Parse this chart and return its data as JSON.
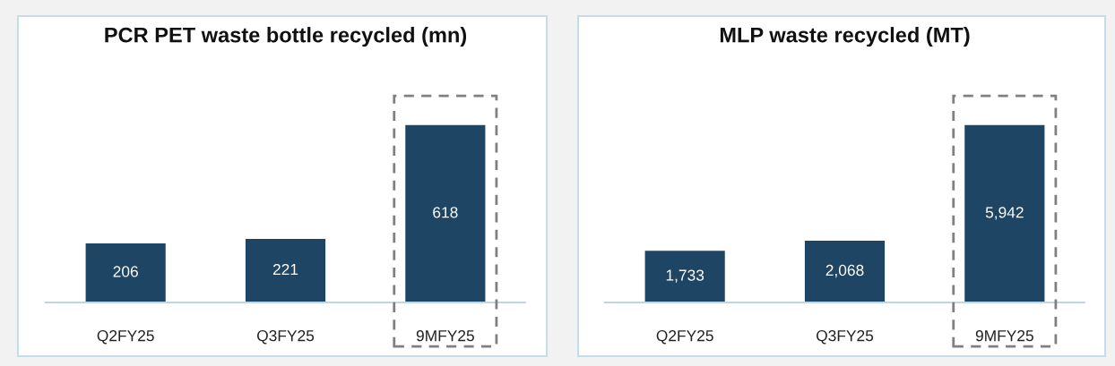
{
  "chart_data": [
    {
      "type": "bar",
      "title": "PCR PET waste bottle recycled (mn)",
      "categories": [
        "Q2FY25",
        "Q3FY25",
        "9MFY25"
      ],
      "values": [
        206,
        221,
        618
      ],
      "color": "#1f4564",
      "data_labels": true
    },
    {
      "type": "bar",
      "title": "MLP waste recycled (MT)",
      "categories": [
        "Q2FY25",
        "Q3FY25",
        "9MFY25"
      ],
      "values": [
        1733,
        2068,
        5942
      ],
      "value_labels": [
        "1,733",
        "2,068",
        "5,942"
      ],
      "color": "#1f4564"
    }
  ]
}
